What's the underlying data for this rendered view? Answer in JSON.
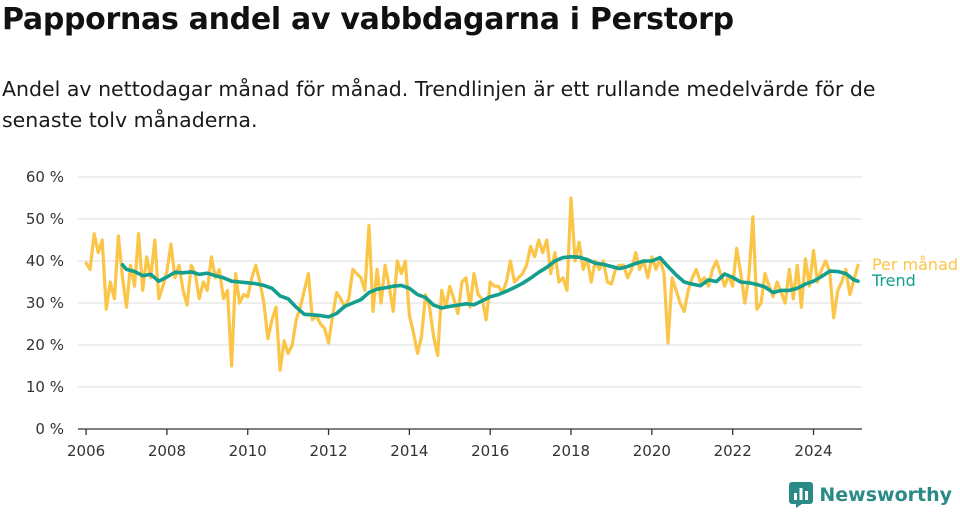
{
  "header": {
    "title": "Pappornas andel av vabbdagarna i Perstorp",
    "subtitle": "Andel av nettodagar månad för månad. Trendlinjen är ett rullande medelvärde för de senaste tolv månaderna."
  },
  "brand": {
    "name": "Newsworthy",
    "icon": "newsworthy-logo-icon",
    "color": "#2a8a86"
  },
  "chart_data": {
    "type": "line",
    "title": "Pappornas andel av vabbdagarna i Perstorp",
    "subtitle": "Andel av nettodagar månad för månad. Trendlinjen är ett rullande medelvärde för de senaste tolv månaderna.",
    "xlabel": "",
    "ylabel": "",
    "xlim": [
      2005.8,
      2025.2
    ],
    "ylim": [
      0,
      60
    ],
    "y_ticks": [
      0,
      10,
      20,
      30,
      40,
      50,
      60
    ],
    "y_tick_labels": [
      "0 %",
      "10 %",
      "20 %",
      "30 %",
      "40 %",
      "50 %",
      "60 %"
    ],
    "x_ticks": [
      2006,
      2008,
      2010,
      2012,
      2014,
      2016,
      2018,
      2020,
      2022,
      2024
    ],
    "x_tick_labels": [
      "2006",
      "2008",
      "2010",
      "2012",
      "2014",
      "2016",
      "2018",
      "2020",
      "2022",
      "2024"
    ],
    "grid": "horizontal",
    "legend": "line-end labels",
    "series": [
      {
        "name": "Per månad",
        "color": "#fbc548",
        "points": [
          [
            2006.0,
            39.5
          ],
          [
            2006.1,
            38
          ],
          [
            2006.2,
            46.5
          ],
          [
            2006.3,
            42
          ],
          [
            2006.4,
            45
          ],
          [
            2006.5,
            28.5
          ],
          [
            2006.6,
            35
          ],
          [
            2006.7,
            31
          ],
          [
            2006.8,
            46
          ],
          [
            2006.9,
            36
          ],
          [
            2007.0,
            29
          ],
          [
            2007.1,
            39
          ],
          [
            2007.2,
            34
          ],
          [
            2007.3,
            46.5
          ],
          [
            2007.4,
            33
          ],
          [
            2007.5,
            41
          ],
          [
            2007.6,
            36
          ],
          [
            2007.7,
            45
          ],
          [
            2007.8,
            31
          ],
          [
            2007.9,
            34
          ],
          [
            2008.0,
            37.5
          ],
          [
            2008.1,
            44
          ],
          [
            2008.2,
            36
          ],
          [
            2008.3,
            39
          ],
          [
            2008.4,
            33
          ],
          [
            2008.5,
            29.5
          ],
          [
            2008.6,
            39
          ],
          [
            2008.7,
            37
          ],
          [
            2008.8,
            31
          ],
          [
            2008.9,
            35
          ],
          [
            2009.0,
            33
          ],
          [
            2009.1,
            41
          ],
          [
            2009.2,
            36
          ],
          [
            2009.3,
            38
          ],
          [
            2009.4,
            31
          ],
          [
            2009.5,
            33
          ],
          [
            2009.6,
            15
          ],
          [
            2009.7,
            37
          ],
          [
            2009.8,
            30
          ],
          [
            2009.9,
            32
          ],
          [
            2010.0,
            31.5
          ],
          [
            2010.1,
            36
          ],
          [
            2010.2,
            39
          ],
          [
            2010.3,
            35
          ],
          [
            2010.4,
            30
          ],
          [
            2010.5,
            21.5
          ],
          [
            2010.6,
            26
          ],
          [
            2010.7,
            29
          ],
          [
            2010.8,
            14
          ],
          [
            2010.9,
            21
          ],
          [
            2011.0,
            18
          ],
          [
            2011.1,
            20
          ],
          [
            2011.2,
            26
          ],
          [
            2011.3,
            29
          ],
          [
            2011.4,
            33
          ],
          [
            2011.5,
            37
          ],
          [
            2011.6,
            26
          ],
          [
            2011.7,
            27
          ],
          [
            2011.8,
            25
          ],
          [
            2011.9,
            24
          ],
          [
            2012.0,
            20.5
          ],
          [
            2012.1,
            27
          ],
          [
            2012.2,
            32.5
          ],
          [
            2012.3,
            31
          ],
          [
            2012.4,
            29
          ],
          [
            2012.5,
            31
          ],
          [
            2012.6,
            38
          ],
          [
            2012.7,
            37
          ],
          [
            2012.8,
            36
          ],
          [
            2012.9,
            33
          ],
          [
            2013.0,
            48.5
          ],
          [
            2013.1,
            28
          ],
          [
            2013.2,
            38
          ],
          [
            2013.3,
            30
          ],
          [
            2013.4,
            39
          ],
          [
            2013.5,
            34
          ],
          [
            2013.6,
            28
          ],
          [
            2013.7,
            40
          ],
          [
            2013.8,
            37
          ],
          [
            2013.9,
            40
          ],
          [
            2014.0,
            27
          ],
          [
            2014.1,
            23
          ],
          [
            2014.2,
            18
          ],
          [
            2014.3,
            22
          ],
          [
            2014.4,
            32
          ],
          [
            2014.5,
            29
          ],
          [
            2014.6,
            22
          ],
          [
            2014.7,
            17.5
          ],
          [
            2014.8,
            33
          ],
          [
            2014.9,
            29
          ],
          [
            2015.0,
            34
          ],
          [
            2015.1,
            31
          ],
          [
            2015.2,
            27.5
          ],
          [
            2015.3,
            35
          ],
          [
            2015.4,
            36
          ],
          [
            2015.5,
            29
          ],
          [
            2015.6,
            37
          ],
          [
            2015.7,
            32
          ],
          [
            2015.8,
            31
          ],
          [
            2015.9,
            26
          ],
          [
            2016.0,
            35
          ],
          [
            2016.1,
            34
          ],
          [
            2016.2,
            34
          ],
          [
            2016.3,
            32.5
          ],
          [
            2016.4,
            35
          ],
          [
            2016.5,
            40
          ],
          [
            2016.6,
            35
          ],
          [
            2016.7,
            36
          ],
          [
            2016.8,
            37
          ],
          [
            2016.9,
            39
          ],
          [
            2017.0,
            43.5
          ],
          [
            2017.1,
            41
          ],
          [
            2017.2,
            45
          ],
          [
            2017.3,
            42
          ],
          [
            2017.4,
            45
          ],
          [
            2017.5,
            37
          ],
          [
            2017.6,
            42
          ],
          [
            2017.7,
            35
          ],
          [
            2017.8,
            36
          ],
          [
            2017.9,
            33
          ],
          [
            2018.0,
            55
          ],
          [
            2018.1,
            40
          ],
          [
            2018.2,
            44.5
          ],
          [
            2018.3,
            38
          ],
          [
            2018.4,
            40.5
          ],
          [
            2018.5,
            35
          ],
          [
            2018.6,
            40
          ],
          [
            2018.7,
            38
          ],
          [
            2018.8,
            40
          ],
          [
            2018.9,
            35
          ],
          [
            2019.0,
            34.5
          ],
          [
            2019.1,
            38
          ],
          [
            2019.2,
            39
          ],
          [
            2019.3,
            39
          ],
          [
            2019.4,
            36
          ],
          [
            2019.5,
            38
          ],
          [
            2019.6,
            42
          ],
          [
            2019.7,
            38
          ],
          [
            2019.8,
            40
          ],
          [
            2019.9,
            36
          ],
          [
            2020.0,
            41
          ],
          [
            2020.1,
            38
          ],
          [
            2020.2,
            40.5
          ],
          [
            2020.3,
            37
          ],
          [
            2020.4,
            20.5
          ],
          [
            2020.5,
            36
          ],
          [
            2020.6,
            33
          ],
          [
            2020.7,
            30
          ],
          [
            2020.8,
            28
          ],
          [
            2020.9,
            33
          ],
          [
            2021.0,
            36
          ],
          [
            2021.1,
            38
          ],
          [
            2021.2,
            35
          ],
          [
            2021.3,
            36
          ],
          [
            2021.4,
            34
          ],
          [
            2021.5,
            38
          ],
          [
            2021.6,
            40
          ],
          [
            2021.7,
            37
          ],
          [
            2021.8,
            34
          ],
          [
            2021.9,
            36.5
          ],
          [
            2022.0,
            34
          ],
          [
            2022.1,
            43
          ],
          [
            2022.2,
            37
          ],
          [
            2022.3,
            30
          ],
          [
            2022.4,
            36
          ],
          [
            2022.5,
            50.5
          ],
          [
            2022.6,
            28.5
          ],
          [
            2022.7,
            30
          ],
          [
            2022.8,
            37
          ],
          [
            2022.9,
            34
          ],
          [
            2023.0,
            31.5
          ],
          [
            2023.1,
            35
          ],
          [
            2023.2,
            32.5
          ],
          [
            2023.3,
            30
          ],
          [
            2023.4,
            38
          ],
          [
            2023.5,
            31
          ],
          [
            2023.6,
            39
          ],
          [
            2023.7,
            29
          ],
          [
            2023.8,
            40.5
          ],
          [
            2023.9,
            34
          ],
          [
            2024.0,
            42.5
          ],
          [
            2024.1,
            35
          ],
          [
            2024.2,
            38
          ],
          [
            2024.3,
            40
          ],
          [
            2024.4,
            37.5
          ],
          [
            2024.5,
            26.5
          ],
          [
            2024.6,
            33
          ],
          [
            2024.7,
            35
          ],
          [
            2024.8,
            38
          ],
          [
            2024.9,
            32
          ],
          [
            2025.0,
            35.5
          ],
          [
            2025.1,
            39
          ]
        ]
      },
      {
        "name": "Trend",
        "color": "#139e8e",
        "points": [
          [
            2006.9,
            39.1
          ],
          [
            2007.0,
            38
          ],
          [
            2007.2,
            37.5
          ],
          [
            2007.4,
            36.5
          ],
          [
            2007.6,
            36.8
          ],
          [
            2007.8,
            35.2
          ],
          [
            2008.0,
            36.2
          ],
          [
            2008.2,
            37.3
          ],
          [
            2008.4,
            37.2
          ],
          [
            2008.6,
            37.4
          ],
          [
            2008.8,
            36.8
          ],
          [
            2009.0,
            37.1
          ],
          [
            2009.2,
            36.5
          ],
          [
            2009.4,
            36
          ],
          [
            2009.6,
            35.2
          ],
          [
            2009.8,
            35
          ],
          [
            2010.0,
            34.8
          ],
          [
            2010.2,
            34.6
          ],
          [
            2010.4,
            34.2
          ],
          [
            2010.6,
            33.5
          ],
          [
            2010.8,
            31.7
          ],
          [
            2011.0,
            31
          ],
          [
            2011.2,
            29
          ],
          [
            2011.4,
            27.3
          ],
          [
            2011.6,
            27.2
          ],
          [
            2011.8,
            27
          ],
          [
            2012.0,
            26.7
          ],
          [
            2012.2,
            27.5
          ],
          [
            2012.4,
            29.2
          ],
          [
            2012.6,
            30
          ],
          [
            2012.8,
            30.8
          ],
          [
            2013.0,
            32.5
          ],
          [
            2013.2,
            33.3
          ],
          [
            2013.4,
            33.6
          ],
          [
            2013.6,
            34
          ],
          [
            2013.8,
            34.2
          ],
          [
            2014.0,
            33.5
          ],
          [
            2014.2,
            32
          ],
          [
            2014.4,
            31.3
          ],
          [
            2014.6,
            29.5
          ],
          [
            2014.8,
            28.8
          ],
          [
            2015.0,
            29.2
          ],
          [
            2015.2,
            29.5
          ],
          [
            2015.4,
            29.8
          ],
          [
            2015.6,
            29.6
          ],
          [
            2015.8,
            30.5
          ],
          [
            2016.0,
            31.5
          ],
          [
            2016.2,
            32
          ],
          [
            2016.4,
            32.8
          ],
          [
            2016.6,
            33.7
          ],
          [
            2016.8,
            34.7
          ],
          [
            2017.0,
            35.9
          ],
          [
            2017.2,
            37.3
          ],
          [
            2017.4,
            38.5
          ],
          [
            2017.6,
            40
          ],
          [
            2017.8,
            40.8
          ],
          [
            2018.0,
            41
          ],
          [
            2018.2,
            40.9
          ],
          [
            2018.4,
            40.3
          ],
          [
            2018.6,
            39.5
          ],
          [
            2018.8,
            39.2
          ],
          [
            2019.0,
            38.7
          ],
          [
            2019.2,
            38.2
          ],
          [
            2019.4,
            38.7
          ],
          [
            2019.6,
            39.4
          ],
          [
            2019.8,
            40
          ],
          [
            2020.0,
            40
          ],
          [
            2020.2,
            40.8
          ],
          [
            2020.4,
            38.7
          ],
          [
            2020.6,
            36.7
          ],
          [
            2020.8,
            35
          ],
          [
            2021.0,
            34.5
          ],
          [
            2021.2,
            34.1
          ],
          [
            2021.4,
            35.5
          ],
          [
            2021.6,
            35.1
          ],
          [
            2021.8,
            36.9
          ],
          [
            2022.0,
            36.1
          ],
          [
            2022.2,
            35
          ],
          [
            2022.4,
            34.8
          ],
          [
            2022.6,
            34.4
          ],
          [
            2022.8,
            33.8
          ],
          [
            2023.0,
            32.5
          ],
          [
            2023.2,
            33
          ],
          [
            2023.4,
            33
          ],
          [
            2023.6,
            33.5
          ],
          [
            2023.8,
            34.5
          ],
          [
            2024.0,
            35.2
          ],
          [
            2024.2,
            36.3
          ],
          [
            2024.4,
            37.6
          ],
          [
            2024.6,
            37.5
          ],
          [
            2024.8,
            37
          ],
          [
            2025.0,
            35.5
          ],
          [
            2025.1,
            35.2
          ]
        ]
      }
    ]
  }
}
